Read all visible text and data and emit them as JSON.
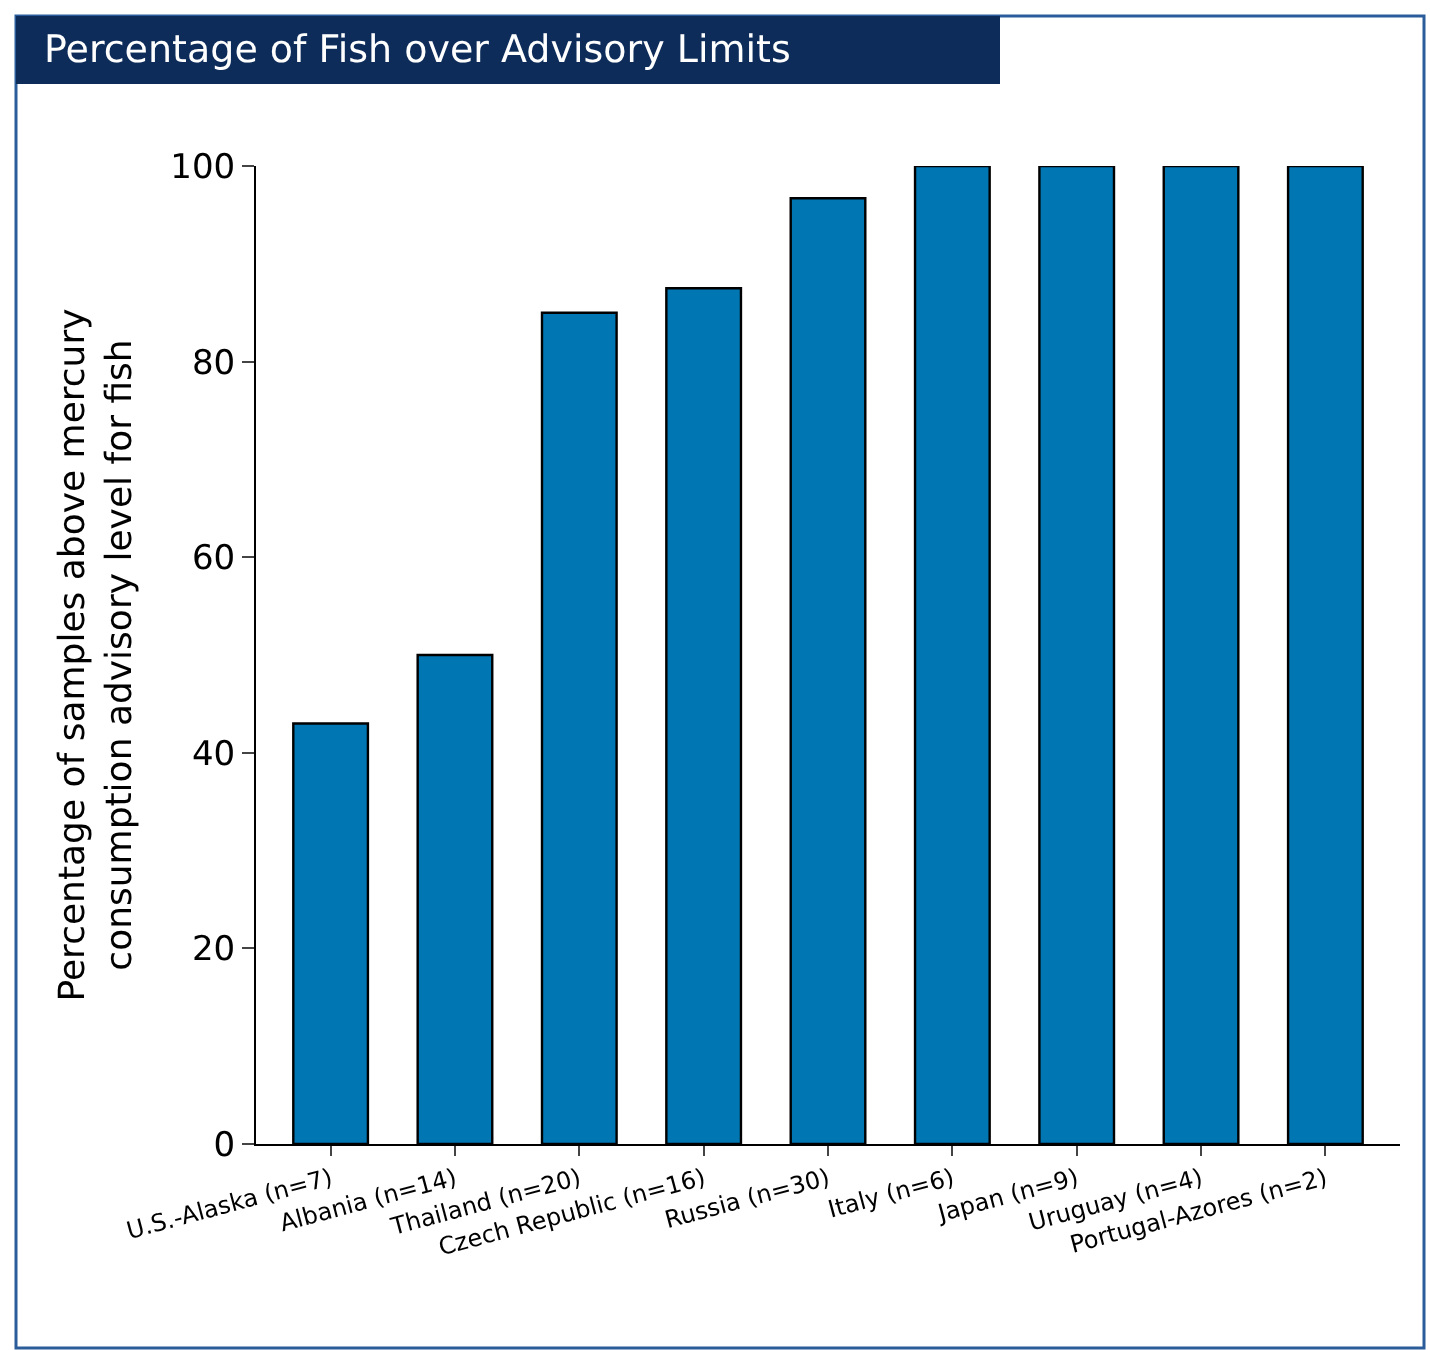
{
  "chart_data": {
    "type": "bar",
    "title": "Percentage of Fish over Advisory Limits",
    "ylabel": "Percentage of samples above mercury\nconsumption advisory level for fish",
    "categories": [
      "U.S.-Alaska (n=7)",
      "Albania (n=14)",
      "Thailand (n=20)",
      "Czech Republic (n=16)",
      "Russia (n=30)",
      "Italy (n=6)",
      "Japan (n=9)",
      "Uruguay (n=4)",
      "Portugal-Azores (n=2)"
    ],
    "values": [
      43,
      50,
      85,
      87.5,
      96.7,
      100,
      100,
      100,
      100
    ],
    "color": "#0077b3",
    "ylim": [
      0,
      100
    ],
    "yticks": [
      0,
      20,
      40,
      60,
      80,
      100
    ]
  }
}
